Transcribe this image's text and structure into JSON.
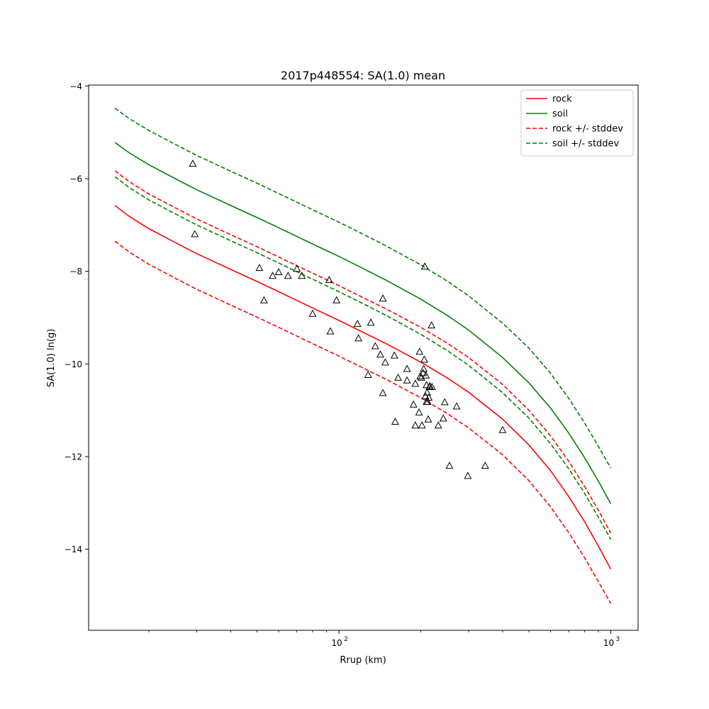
{
  "chart_data": {
    "type": "line",
    "title": "2017p448554: SA(1.0) mean",
    "xlabel": "Rrup (km)",
    "ylabel": "SA(1.0) ln(g)",
    "xscale": "log",
    "xlim": [
      12.0,
      1260.0
    ],
    "ylim": [
      -15.75,
      -3.98
    ],
    "grid": false,
    "legend_position": "top-right",
    "x_ticks": [
      {
        "value": 100,
        "label": "10",
        "exp": "2"
      },
      {
        "value": 1000,
        "label": "10",
        "exp": "3"
      }
    ],
    "y_ticks": [
      {
        "value": -4,
        "label": "−4"
      },
      {
        "value": -6,
        "label": "−6"
      },
      {
        "value": -8,
        "label": "−8"
      },
      {
        "value": -10,
        "label": "−10"
      },
      {
        "value": -12,
        "label": "−12"
      },
      {
        "value": -14,
        "label": "−14"
      }
    ],
    "series": [
      {
        "name": "rock",
        "color": "#ff0000",
        "dash": "solid",
        "x": [
          15,
          17,
          20,
          25,
          30,
          40,
          50,
          60,
          80,
          100,
          120,
          150,
          200,
          250,
          300,
          400,
          500,
          600,
          700,
          800,
          900,
          1000
        ],
        "y": [
          -6.58,
          -6.82,
          -7.08,
          -7.38,
          -7.62,
          -7.96,
          -8.22,
          -8.44,
          -8.79,
          -9.06,
          -9.29,
          -9.57,
          -9.96,
          -10.3,
          -10.61,
          -11.19,
          -11.75,
          -12.3,
          -12.86,
          -13.4,
          -13.93,
          -14.43
        ]
      },
      {
        "name": "soil",
        "color": "#008000",
        "dash": "solid",
        "x": [
          15,
          17,
          20,
          25,
          30,
          40,
          50,
          60,
          80,
          100,
          120,
          150,
          200,
          250,
          300,
          400,
          500,
          600,
          700,
          800,
          900,
          1000
        ],
        "y": [
          -5.22,
          -5.45,
          -5.7,
          -6.0,
          -6.24,
          -6.58,
          -6.84,
          -7.06,
          -7.41,
          -7.68,
          -7.91,
          -8.2,
          -8.6,
          -8.95,
          -9.27,
          -9.86,
          -10.41,
          -10.95,
          -11.49,
          -12.02,
          -12.53,
          -13.02
        ]
      },
      {
        "name": "rock +/- stddev",
        "color": "#ff0000",
        "dash": "dashed",
        "x": [
          15,
          17,
          20,
          25,
          30,
          40,
          50,
          60,
          80,
          100,
          120,
          150,
          200,
          250,
          300,
          400,
          500,
          600,
          700,
          800,
          900,
          1000
        ],
        "y": [
          -5.83,
          -6.07,
          -6.33,
          -6.63,
          -6.87,
          -7.21,
          -7.47,
          -7.69,
          -8.04,
          -8.31,
          -8.54,
          -8.82,
          -9.21,
          -9.55,
          -9.86,
          -10.44,
          -11.0,
          -11.55,
          -12.1,
          -12.64,
          -13.16,
          -13.65
        ]
      },
      {
        "name": "",
        "color": "#ff0000",
        "dash": "dashed",
        "x": [
          15,
          17,
          20,
          25,
          30,
          40,
          50,
          60,
          80,
          100,
          120,
          150,
          200,
          250,
          300,
          400,
          500,
          600,
          700,
          800,
          900,
          1000
        ],
        "y": [
          -7.35,
          -7.59,
          -7.85,
          -8.15,
          -8.39,
          -8.73,
          -8.99,
          -9.21,
          -9.56,
          -9.83,
          -10.06,
          -10.34,
          -10.73,
          -11.07,
          -11.38,
          -11.96,
          -12.52,
          -13.08,
          -13.64,
          -14.18,
          -14.7,
          -15.17
        ]
      },
      {
        "name": "soil +/- stddev",
        "color": "#008000",
        "dash": "dashed",
        "x": [
          15,
          17,
          20,
          25,
          30,
          40,
          50,
          60,
          80,
          100,
          120,
          150,
          200,
          250,
          300,
          400,
          500,
          600,
          700,
          800,
          900,
          1000
        ],
        "y": [
          -4.48,
          -4.71,
          -4.96,
          -5.26,
          -5.5,
          -5.84,
          -6.1,
          -6.32,
          -6.67,
          -6.94,
          -7.17,
          -7.46,
          -7.86,
          -8.21,
          -8.53,
          -9.12,
          -9.66,
          -10.2,
          -10.74,
          -11.27,
          -11.78,
          -12.25
        ]
      },
      {
        "name": "",
        "color": "#008000",
        "dash": "dashed",
        "x": [
          15,
          17,
          20,
          25,
          30,
          40,
          50,
          60,
          80,
          100,
          120,
          150,
          200,
          250,
          300,
          400,
          500,
          600,
          700,
          800,
          900,
          1000
        ],
        "y": [
          -5.96,
          -6.2,
          -6.46,
          -6.76,
          -7.0,
          -7.34,
          -7.6,
          -7.82,
          -8.17,
          -8.44,
          -8.67,
          -8.96,
          -9.36,
          -9.71,
          -10.03,
          -10.62,
          -11.17,
          -11.72,
          -12.26,
          -12.79,
          -13.31,
          -13.79
        ]
      }
    ],
    "observations": {
      "marker": "triangle-open",
      "color": "#000000",
      "points": [
        [
          29.0,
          -5.68
        ],
        [
          29.5,
          -7.2
        ],
        [
          51,
          -7.93
        ],
        [
          53,
          -8.63
        ],
        [
          57,
          -8.1
        ],
        [
          60,
          -8.02
        ],
        [
          65,
          -8.1
        ],
        [
          70,
          -7.95
        ],
        [
          73,
          -8.1
        ],
        [
          80,
          -8.92
        ],
        [
          92,
          -8.19
        ],
        [
          93,
          -9.3
        ],
        [
          98,
          -8.63
        ],
        [
          117,
          -9.14
        ],
        [
          118,
          -9.45
        ],
        [
          128,
          -10.24
        ],
        [
          131,
          -9.11
        ],
        [
          136,
          -9.62
        ],
        [
          142,
          -9.8
        ],
        [
          145,
          -8.59
        ],
        [
          145,
          -10.63
        ],
        [
          148,
          -9.97
        ],
        [
          160,
          -9.82
        ],
        [
          161,
          -11.25
        ],
        [
          165,
          -10.3
        ],
        [
          178,
          -10.36
        ],
        [
          178,
          -10.11
        ],
        [
          188,
          -10.88
        ],
        [
          191,
          -11.33
        ],
        [
          191,
          -10.43
        ],
        [
          197,
          -11.05
        ],
        [
          198,
          -9.74
        ],
        [
          199,
          -10.27
        ],
        [
          201,
          -10.3
        ],
        [
          202,
          -11.33
        ],
        [
          204,
          -10.2
        ],
        [
          205,
          -10.11
        ],
        [
          206,
          -9.91
        ],
        [
          207,
          -7.9
        ],
        [
          208,
          -10.7
        ],
        [
          209,
          -10.25
        ],
        [
          210,
          -10.82
        ],
        [
          210,
          -10.46
        ],
        [
          211,
          -10.62
        ],
        [
          212,
          -10.82
        ],
        [
          213,
          -11.2
        ],
        [
          214,
          -10.73
        ],
        [
          215,
          -10.5
        ],
        [
          216,
          -10.48
        ],
        [
          219,
          -9.17
        ],
        [
          220,
          -10.5
        ],
        [
          232,
          -11.33
        ],
        [
          242,
          -11.18
        ],
        [
          245,
          -10.83
        ],
        [
          255,
          -12.2
        ],
        [
          271,
          -10.92
        ],
        [
          298,
          -12.42
        ],
        [
          345,
          -12.2
        ],
        [
          400,
          -11.43
        ]
      ]
    }
  }
}
